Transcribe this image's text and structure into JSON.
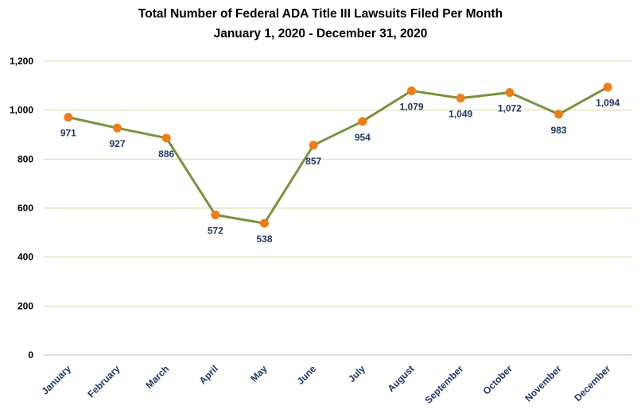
{
  "chart_data": {
    "type": "line",
    "title": "Total Number of Federal ADA Title III Lawsuits Filed Per Month",
    "subtitle": "January 1, 2020 - December 31, 2020",
    "xlabel": "",
    "ylabel": "",
    "categories": [
      "January",
      "February",
      "March",
      "April",
      "May",
      "June",
      "July",
      "August",
      "September",
      "October",
      "November",
      "December"
    ],
    "series": [
      {
        "values": [
          971,
          927,
          886,
          572,
          538,
          857,
          954,
          1079,
          1049,
          1072,
          983,
          1094
        ],
        "data_labels": [
          "971",
          "927",
          "886",
          "572",
          "538",
          "857",
          "954",
          "1,079",
          "1,049",
          "1,072",
          "983",
          "1,094"
        ]
      }
    ],
    "ylim": [
      0,
      1200
    ],
    "yticks": [
      0,
      200,
      400,
      600,
      800,
      1000,
      1200
    ],
    "ytick_labels": [
      "0",
      "200",
      "400",
      "600",
      "800",
      "1,000",
      "1,200"
    ],
    "grid": true,
    "legend": "none",
    "colors": {
      "line": "#77933C",
      "marker": "#F07C19",
      "grid": "#D9D9A6",
      "label": "#1F3864",
      "xtick": "#1F3864"
    }
  }
}
